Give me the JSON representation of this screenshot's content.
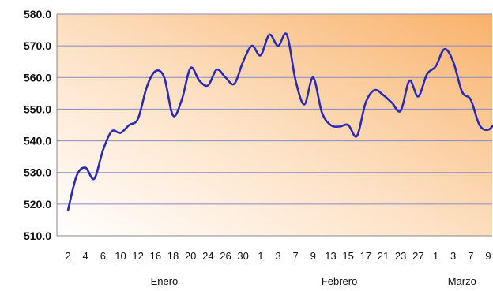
{
  "chart_data": {
    "type": "line",
    "title": "",
    "xlabel": "",
    "ylabel": "",
    "ylim": [
      510,
      580
    ],
    "yticks": [
      "510.0",
      "520.0",
      "530.0",
      "540.0",
      "550.0",
      "560.0",
      "570.0",
      "580.0"
    ],
    "grid": "horizontal",
    "x_tick_labels": [
      "2",
      "4",
      "6",
      "10",
      "12",
      "16",
      "18",
      "20",
      "24",
      "26",
      "30",
      "1",
      "3",
      "7",
      "9",
      "13",
      "15",
      "17",
      "21",
      "23",
      "27",
      "1",
      "3",
      "7",
      "9"
    ],
    "month_labels": [
      {
        "label": "Enero",
        "at_tick": 5.5
      },
      {
        "label": "Febrero",
        "at_tick": 15.5
      },
      {
        "label": "Marzo",
        "at_tick": 22.5
      }
    ],
    "series": [
      {
        "color": "#2b2bb5",
        "x": [
          0,
          0.5,
          1,
          1.5,
          2,
          2.5,
          3,
          3.5,
          4,
          4.5,
          5,
          5.5,
          6,
          6.5,
          7,
          7.5,
          8,
          8.5,
          9,
          9.5,
          10,
          10.5,
          11,
          11.5,
          12,
          12.5,
          13,
          13.5,
          14,
          14.5,
          15,
          15.5,
          16,
          16.5,
          17,
          17.5,
          18,
          18.5,
          19,
          19.5,
          20,
          20.5,
          21,
          21.5,
          22,
          22.5,
          23,
          23.5,
          24,
          24.5,
          25
        ],
        "y": [
          518,
          529,
          531.5,
          528,
          537,
          543,
          542.5,
          545,
          547,
          557,
          562,
          560,
          548,
          553,
          563,
          559,
          557.5,
          562.5,
          560,
          558,
          565,
          570,
          567,
          573.5,
          570,
          573.5,
          559,
          551.5,
          560,
          549,
          545,
          544.5,
          545,
          541.5,
          552,
          556,
          554.5,
          552,
          549.5,
          559,
          554,
          561,
          563.5,
          569,
          565,
          555.5,
          553,
          545,
          543.5,
          546,
          546
        ]
      }
    ]
  },
  "colors": {
    "line": "#2b2bb5",
    "grid": "#8a8ac6",
    "bg_light": "#ffffff",
    "bg_warm": "#f8b26a"
  }
}
